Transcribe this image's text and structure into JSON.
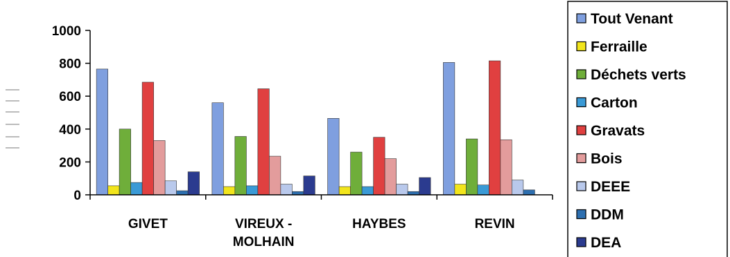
{
  "chart_data": {
    "type": "bar",
    "categories": [
      [
        "GIVET"
      ],
      [
        "VIREUX -",
        "MOLHAIN"
      ],
      [
        "HAYBES"
      ],
      [
        "REVIN"
      ]
    ],
    "ylim": [
      0,
      1000
    ],
    "yticks": [
      "0",
      "200",
      "400",
      "600",
      "800",
      "1000"
    ],
    "grid": false,
    "legend_position": "right",
    "series": [
      {
        "name": "Tout Venant",
        "color": "#7f9fdf",
        "values": [
          765,
          560,
          465,
          805
        ]
      },
      {
        "name": "Ferraille",
        "color": "#f2e51c",
        "values": [
          55,
          50,
          50,
          65
        ]
      },
      {
        "name": "Déchets verts",
        "color": "#6fae3a",
        "values": [
          400,
          355,
          260,
          340
        ]
      },
      {
        "name": "Carton",
        "color": "#3a9ad6",
        "values": [
          75,
          55,
          50,
          60
        ]
      },
      {
        "name": "Gravats",
        "color": "#e04040",
        "values": [
          685,
          645,
          350,
          815
        ]
      },
      {
        "name": "Bois",
        "color": "#e39c9c",
        "values": [
          330,
          235,
          220,
          335
        ]
      },
      {
        "name": "DEEE",
        "color": "#b9c9ec",
        "values": [
          85,
          65,
          65,
          90
        ]
      },
      {
        "name": "DDM",
        "color": "#2d6fb0",
        "values": [
          25,
          20,
          20,
          30
        ]
      },
      {
        "name": "DEA",
        "color": "#2b3b8f",
        "values": [
          140,
          115,
          105,
          0
        ]
      }
    ]
  }
}
